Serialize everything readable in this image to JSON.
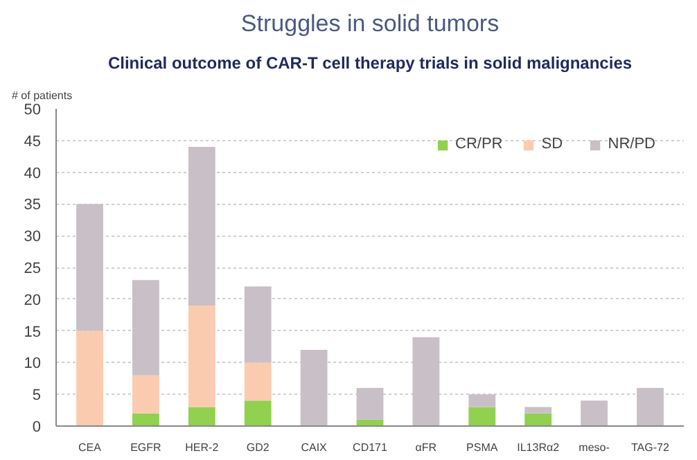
{
  "chart_data": {
    "type": "bar",
    "title": "Struggles in solid tumors",
    "subtitle": "Clinical outcome of CAR-T cell therapy trials in solid malignancies",
    "ylabel": "# of patients",
    "categories": [
      "CEA",
      "EGFR",
      "HER-2",
      "GD2",
      "CAIX",
      "CD171",
      "αFR",
      "PSMA",
      "IL13Rα2",
      "meso-",
      "TAG-72"
    ],
    "stacked": true,
    "series": [
      {
        "name": "CR/PR",
        "color": "#92d050",
        "values": [
          0,
          2,
          3,
          4,
          0,
          1,
          0,
          3,
          2,
          0,
          0
        ]
      },
      {
        "name": "SD",
        "color": "#fbcbb0",
        "values": [
          15,
          6,
          16,
          6,
          0,
          0,
          0,
          0,
          0,
          0,
          0
        ]
      },
      {
        "name": "NR/PD",
        "color": "#c9bfc6",
        "values": [
          20,
          15,
          25,
          12,
          12,
          5,
          14,
          2,
          1,
          4,
          6
        ]
      }
    ],
    "ylim": [
      0,
      50
    ],
    "yticks": [
      0,
      5,
      10,
      15,
      20,
      25,
      30,
      35,
      40,
      45,
      50
    ],
    "grid": "y",
    "legend": "top right"
  }
}
